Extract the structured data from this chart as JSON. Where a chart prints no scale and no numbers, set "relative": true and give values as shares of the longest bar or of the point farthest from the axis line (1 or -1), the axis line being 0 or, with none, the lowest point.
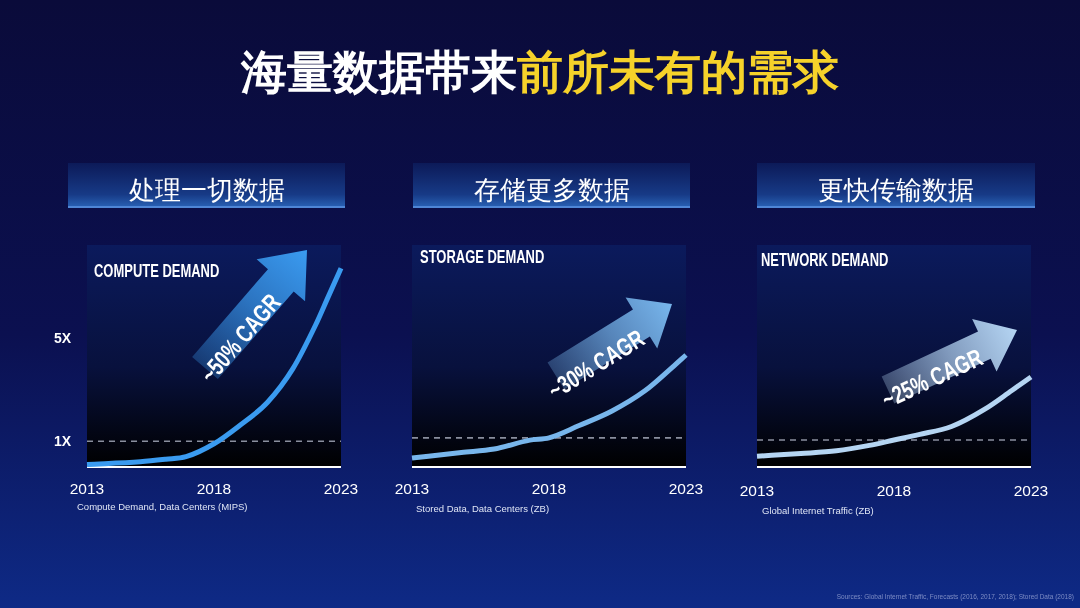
{
  "chart_data": [
    {
      "type": "other",
      "annotations": [
        "海量数据带来",
        "前所未有的需求",
        "Sources: Global Internet Traffic, Forecasts (2016, 2017, 2018); Stored Data (2018)"
      ]
    },
    {
      "type": "line",
      "title": "处理一切数据",
      "subtitle": "COMPUTE DEMAND",
      "xlabel": "Compute Demand, Data Centers (MIPS)",
      "x": [
        2013,
        2015.1,
        2016.1,
        2016.9,
        2018,
        2019,
        2020.1,
        2021.1,
        2022,
        2022.5,
        2023
      ],
      "values": [
        0.1,
        0.2,
        0.3,
        0.4,
        0.9,
        1.6,
        2.5,
        3.8,
        5.5,
        6.6,
        7.7
      ],
      "color": "#3a9bf0",
      "xlim": [
        2013,
        2023
      ],
      "xticks": [
        2013,
        2018,
        2023
      ],
      "ylim": [
        0,
        8.6
      ],
      "yticks": [
        {
          "value": 1,
          "label": "1X"
        },
        {
          "value": 5,
          "label": "5X"
        }
      ],
      "ref_lines": [
        {
          "axis": "y",
          "value": 1,
          "color": "#8a8f9e",
          "line_style": "dashed"
        }
      ],
      "annotations": [
        "~50% CAGR"
      ]
    },
    {
      "type": "line",
      "relative": true,
      "title": "存储更多数据",
      "subtitle": "STORAGE DEMAND",
      "xlabel": "Stored Data, Data Centers (ZB)",
      "x": [
        2013,
        2014.8,
        2016,
        2017.3,
        2018,
        2019.1,
        2020.3,
        2021.5,
        2022.5,
        2023
      ],
      "values": [
        0.08,
        0.13,
        0.16,
        0.24,
        0.26,
        0.37,
        0.5,
        0.68,
        0.89,
        1
      ],
      "color": "#78b6ec",
      "xlim": [
        2013,
        2023
      ],
      "xticks": [
        2013,
        2018,
        2023
      ],
      "ref_lines": [
        {
          "axis": "y",
          "value": 0.26,
          "color": "#8a8f9e",
          "line_style": "dashed"
        }
      ],
      "annotations": [
        "~30% CAGR"
      ]
    },
    {
      "type": "line",
      "relative": true,
      "title": "更快传输数据",
      "subtitle": "NETWORK DEMAND",
      "xlabel": "Global Internet Traffic (ZB)",
      "x": [
        2013,
        2014.6,
        2015.9,
        2017.1,
        2018,
        2018.9,
        2020.1,
        2021.3,
        2022.3,
        2023
      ],
      "values": [
        0.12,
        0.15,
        0.18,
        0.24,
        0.3,
        0.36,
        0.45,
        0.64,
        0.85,
        1
      ],
      "color": "#b5d5f3",
      "xlim": [
        2013,
        2023
      ],
      "xticks": [
        2013,
        2018,
        2023
      ],
      "ref_lines": [
        {
          "axis": "y",
          "value": 0.3,
          "color": "#8a8f9e",
          "line_style": "dashed"
        }
      ],
      "annotations": [
        "~25% CAGR"
      ]
    }
  ]
}
